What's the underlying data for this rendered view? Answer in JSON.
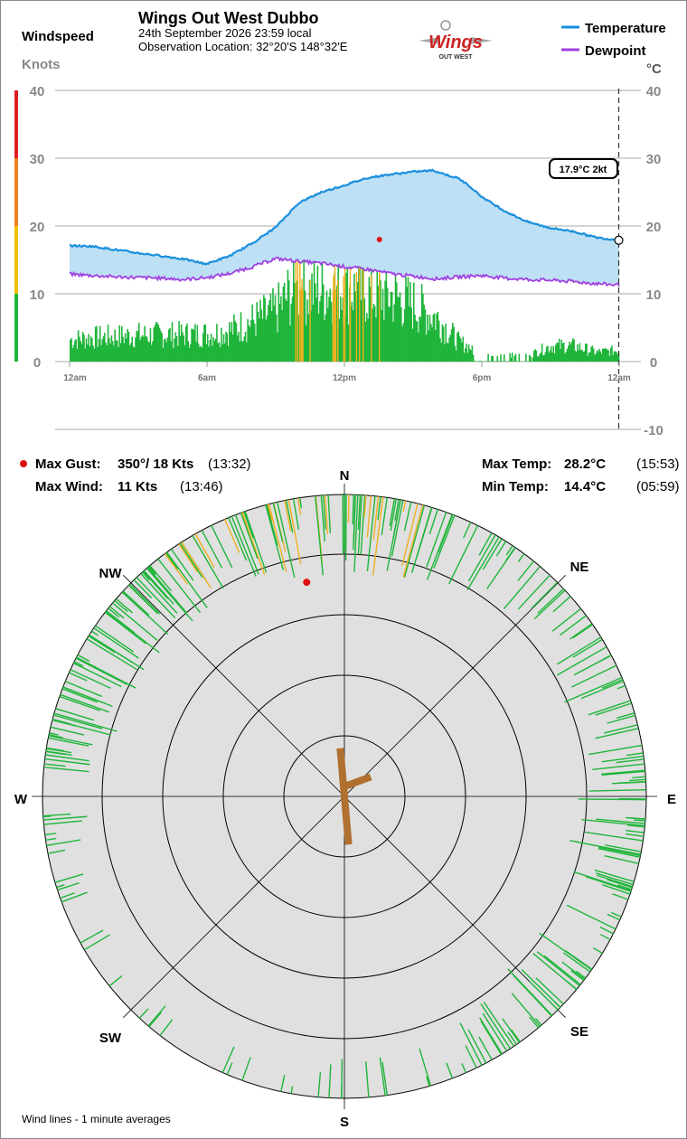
{
  "header": {
    "title": "Wings Out West Dubbo",
    "date_line": "24th September 2026  23:59 local",
    "location_line": "Observation Location:  32°20'S 148°32'E",
    "windspeed_label": "Windspeed",
    "knots_label": "Knots",
    "celsius_label": "°C",
    "logo_text": "Wings",
    "logo_subtext": "OUT WEST"
  },
  "legend": {
    "temperature": "Temperature",
    "dewpoint": "Dewpoint"
  },
  "colors": {
    "temperature": "#1a8fdc",
    "dewpoint": "#a040e0",
    "temp_fill": "#bde0f5",
    "wind": "#1fb53a",
    "gust_bar": "#f0b020",
    "max_gust_dot": "#dd1111",
    "rose_bg": "#e0e0e0",
    "rose_arrow": "#b07030",
    "scale_green": "#1fb53a",
    "scale_yellow": "#f0c000",
    "scale_orange": "#f08020",
    "scale_red": "#dd2020"
  },
  "readout": {
    "text": "17.9°C  2kt"
  },
  "stats": {
    "max_gust_label": "Max Gust:",
    "max_gust_value": "350°/  18 Kts",
    "max_gust_time": "(13:32)",
    "max_wind_label": "Max Wind:",
    "max_wind_value": "11 Kts",
    "max_wind_time": "(13:46)",
    "max_temp_label": "Max Temp:",
    "max_temp_value": "28.2°C",
    "max_temp_time": "(15:53)",
    "min_temp_label": "Min Temp:",
    "min_temp_value": "14.4°C",
    "min_temp_time": "(05:59)"
  },
  "compass": {
    "N": "N",
    "NE": "NE",
    "E": "E",
    "SE": "SE",
    "S": "S",
    "SW": "SW",
    "W": "W",
    "NW": "NW"
  },
  "footer": {
    "note": "Wind lines - 1 minute averages"
  },
  "chart_data": [
    {
      "type": "line",
      "x_unit": "hour of day",
      "x_ticks": [
        "12am",
        "6am",
        "12pm",
        "6pm",
        "12am"
      ],
      "x_tick_hours": [
        0,
        6,
        12,
        18,
        24
      ],
      "left_axis": {
        "label": "Knots",
        "ticks": [
          "0",
          "10",
          "20",
          "30",
          "40"
        ],
        "ylim": [
          0,
          40
        ]
      },
      "right_axis": {
        "label": "°C",
        "ticks": [
          "-10",
          "0",
          "10",
          "20",
          "30",
          "40"
        ],
        "ylim": [
          -10,
          40
        ]
      },
      "grid": true,
      "series": [
        {
          "name": "Temperature",
          "axis": "right",
          "x": [
            0,
            1,
            2,
            3,
            4,
            5,
            5.98,
            7,
            8,
            9,
            10,
            11,
            12,
            13,
            14,
            15,
            15.88,
            16.5,
            17,
            17.5,
            18,
            19,
            20,
            21,
            22,
            23,
            24
          ],
          "y": [
            17.1,
            17.0,
            16.5,
            16.0,
            15.6,
            15.1,
            14.4,
            15.6,
            17.5,
            19.8,
            23.4,
            25.0,
            26.0,
            27.1,
            27.6,
            28.0,
            28.2,
            27.5,
            27.0,
            25.8,
            24.3,
            22.2,
            20.6,
            19.7,
            19.2,
            18.3,
            17.9
          ]
        },
        {
          "name": "Dewpoint",
          "axis": "right",
          "x": [
            0,
            1,
            2,
            3,
            4,
            5,
            6,
            7,
            8,
            9,
            10,
            11,
            12,
            13,
            14,
            15,
            16,
            17,
            18,
            19,
            20,
            21,
            22,
            23,
            24
          ],
          "y": [
            12.9,
            12.7,
            12.5,
            12.4,
            12.3,
            12.1,
            12.4,
            13.0,
            14.0,
            15.2,
            14.8,
            14.5,
            14.0,
            13.6,
            13.0,
            12.6,
            12.2,
            12.5,
            12.7,
            12.3,
            12.1,
            12.0,
            11.8,
            11.5,
            11.3
          ]
        },
        {
          "name": "Wind speed profile",
          "axis": "left",
          "x": [
            0,
            1,
            2,
            3,
            4,
            5,
            6,
            7,
            8,
            9,
            9.5,
            10,
            11,
            12,
            13,
            14,
            15,
            16,
            17,
            18,
            19,
            20,
            21,
            22,
            23,
            24
          ],
          "y": [
            3.5,
            3.8,
            4.0,
            4.2,
            4.3,
            4.3,
            4.4,
            5.0,
            6.5,
            8.0,
            10.5,
            11.0,
            11.5,
            11.5,
            11.0,
            10.5,
            9.0,
            7.0,
            3.0,
            1.5,
            1.5,
            1.0,
            2.5,
            2.5,
            1.5,
            1.8
          ]
        }
      ],
      "max_gust_point": {
        "x": 13.53,
        "y": 18
      },
      "current": {
        "x": 23.98,
        "temperature": 17.9,
        "wind": 2
      }
    },
    {
      "type": "scatter",
      "subtype": "wind-rose",
      "description_of_encoding": "1-minute wind averages as radial lines by direction",
      "rings_knots": [
        5,
        10,
        15,
        20,
        25
      ],
      "directions": [
        "N",
        "NE",
        "E",
        "SE",
        "S",
        "SW",
        "W",
        "NW"
      ],
      "max_gust": {
        "direction_deg": 350,
        "speed_kts": 18
      },
      "mean_vector": {
        "direction_deg": 355,
        "length_kts": 8
      },
      "secondary_vector": {
        "direction_deg": 70,
        "length_kts": 4
      }
    }
  ]
}
